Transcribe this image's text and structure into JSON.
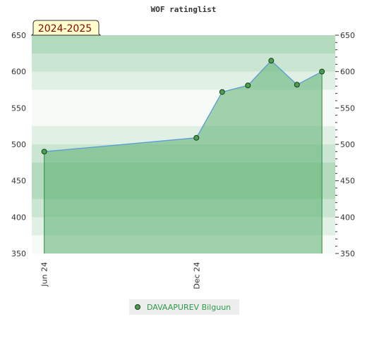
{
  "chart_data": {
    "type": "area",
    "title": "WOF ratinglist",
    "badge": "2024-2025",
    "ylim": [
      350,
      650
    ],
    "y_ticks": [
      350,
      400,
      450,
      500,
      550,
      600,
      650
    ],
    "x_ticks": [
      {
        "label": "Jun 24",
        "x": "2024-06-01"
      },
      {
        "label": "Dec 24",
        "x": "2024-12-01"
      }
    ],
    "xlim": [
      "2024-05-17",
      "2025-05-17"
    ],
    "series": [
      {
        "name": "DAVAAPUREV Bilguun",
        "points": [
          {
            "x": "2024-06-01",
            "y": 490
          },
          {
            "x": "2024-12-01",
            "y": 509
          },
          {
            "x": "2025-01-01",
            "y": 572
          },
          {
            "x": "2025-02-01",
            "y": 581
          },
          {
            "x": "2025-03-01",
            "y": 615
          },
          {
            "x": "2025-04-01",
            "y": 582
          },
          {
            "x": "2025-05-01",
            "y": 600
          }
        ]
      }
    ],
    "colors": {
      "area": "#5aaf6e",
      "line": "#5b9bd5",
      "marker": "#4aa052",
      "badge_bg": "#ffffcc",
      "legend_bg": "#eeeeee"
    },
    "legend_position": "bottom-center",
    "grid": false
  }
}
